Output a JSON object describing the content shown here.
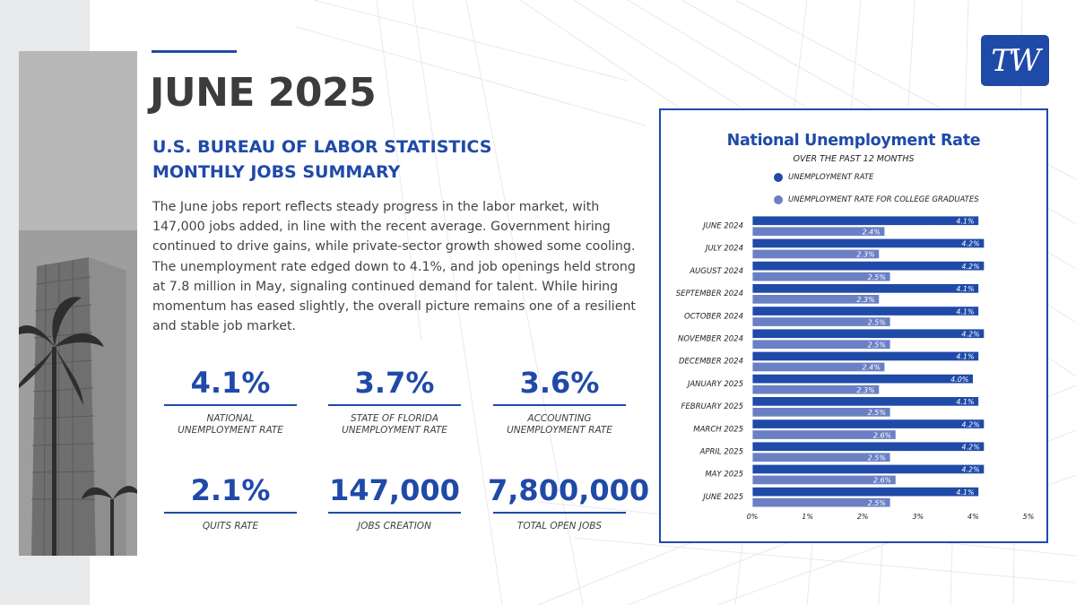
{
  "header": {
    "title": "JUNE 2025",
    "subtitle_line1": "U.S. BUREAU OF LABOR STATISTICS",
    "subtitle_line2": "MONTHLY JOBS SUMMARY",
    "summary": "The June jobs report reflects steady progress in the labor market, with 147,000 jobs added, in line with the recent average. Government hiring continued to drive gains, while private-sector growth showed some cooling. The unemployment rate edged down to 4.1%, and job openings held strong at 7.8 million in May, signaling continued demand for talent. While hiring momentum has eased slightly, the overall picture remains one of a resilient and stable job market."
  },
  "logo": {
    "text": "TW"
  },
  "stats": [
    {
      "value": "4.1%",
      "label_line1": "NATIONAL",
      "label_line2": "UNEMPLOYMENT RATE"
    },
    {
      "value": "3.7%",
      "label_line1": "STATE OF FLORIDA",
      "label_line2": "UNEMPLOYMENT RATE"
    },
    {
      "value": "3.6%",
      "label_line1": "ACCOUNTING",
      "label_line2": "UNEMPLOYMENT RATE"
    },
    {
      "value": "2.1%",
      "label_line1": "QUITS RATE",
      "label_line2": ""
    },
    {
      "value": "147,000",
      "label_line1": "JOBS CREATION",
      "label_line2": ""
    },
    {
      "value": "7,800,000",
      "label_line1": "TOTAL OPEN JOBS",
      "label_line2": ""
    }
  ],
  "colors": {
    "brand": "#1f4aa8",
    "series_primary": "#1f4aa8",
    "series_secondary": "#6b80c4"
  },
  "chart_data": {
    "type": "bar",
    "orientation": "horizontal",
    "title": "National Unemployment Rate",
    "subtitle": "OVER THE PAST 12 MONTHS",
    "categories": [
      "JUNE 2024",
      "JULY 2024",
      "AUGUST 2024",
      "SEPTEMBER 2024",
      "OCTOBER 2024",
      "NOVEMBER 2024",
      "DECEMBER 2024",
      "JANUARY 2025",
      "FEBRUARY 2025",
      "MARCH 2025",
      "APRIL 2025",
      "MAY 2025",
      "JUNE 2025"
    ],
    "series": [
      {
        "name": "UNEMPLOYMENT RATE",
        "values": [
          4.1,
          4.2,
          4.2,
          4.1,
          4.1,
          4.2,
          4.1,
          4.0,
          4.1,
          4.2,
          4.2,
          4.2,
          4.1
        ],
        "labels": [
          "4.1%",
          "4.2%",
          "4.2%",
          "4.1%",
          "4.1%",
          "4.2%",
          "4.1%",
          "4.0%",
          "4.1%",
          "4.2%",
          "4.2%",
          "4.2%",
          "4.1%"
        ]
      },
      {
        "name": "UNEMPLOYMENT RATE FOR COLLEGE GRADUATES",
        "values": [
          2.4,
          2.3,
          2.5,
          2.3,
          2.5,
          2.5,
          2.4,
          2.3,
          2.5,
          2.6,
          2.5,
          2.6,
          2.5
        ],
        "labels": [
          "2.4%",
          "2.3%",
          "2.5%",
          "2.3%",
          "2.5%",
          "2.5%",
          "2.4%",
          "2.3%",
          "2.5%",
          "2.6%",
          "2.5%",
          "2.6%",
          "2.5%"
        ]
      }
    ],
    "xticks": [
      "0%",
      "1%",
      "2%",
      "3%",
      "4%",
      "5%"
    ],
    "xlim": [
      0,
      5
    ],
    "legend": "top-left",
    "grid": false
  }
}
